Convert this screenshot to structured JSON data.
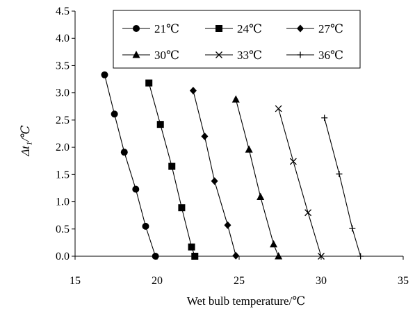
{
  "chart_data": {
    "type": "scatter",
    "xlabel": "Wet bulb temperature/℃",
    "ylabel": "Δt₁/℃",
    "xlim": [
      15,
      35
    ],
    "ylim": [
      0,
      4.5
    ],
    "x_ticks": [
      "15",
      "20",
      "25",
      "30",
      "35"
    ],
    "y_ticks": [
      "0.0",
      "0.5",
      "1.0",
      "1.5",
      "2.0",
      "2.5",
      "3.0",
      "3.5",
      "4.0",
      "4.5"
    ],
    "grid": false,
    "legend_position": "top-right",
    "lines_connect_markers": true,
    "series": [
      {
        "name": "21℃",
        "marker": "circle",
        "points": [
          [
            16.8,
            3.33
          ],
          [
            17.4,
            2.61
          ],
          [
            18.0,
            1.91
          ],
          [
            18.7,
            1.23
          ],
          [
            19.3,
            0.55
          ],
          [
            19.9,
            0.0
          ]
        ]
      },
      {
        "name": "24℃",
        "marker": "square",
        "points": [
          [
            19.5,
            3.18
          ],
          [
            20.2,
            2.42
          ],
          [
            20.9,
            1.65
          ],
          [
            21.5,
            0.89
          ],
          [
            22.1,
            0.17
          ],
          [
            22.3,
            0.0
          ]
        ]
      },
      {
        "name": "27℃",
        "marker": "diamond",
        "points": [
          [
            22.2,
            3.04
          ],
          [
            22.9,
            2.2
          ],
          [
            23.5,
            1.38
          ],
          [
            24.3,
            0.57
          ],
          [
            24.8,
            0.01
          ]
        ]
      },
      {
        "name": "30℃",
        "marker": "triangle",
        "points": [
          [
            24.8,
            2.88
          ],
          [
            25.6,
            1.96
          ],
          [
            26.3,
            1.09
          ],
          [
            27.1,
            0.22
          ],
          [
            27.4,
            0.0
          ]
        ]
      },
      {
        "name": "33℃",
        "marker": "x",
        "points": [
          [
            27.4,
            2.71
          ],
          [
            28.3,
            1.74
          ],
          [
            29.2,
            0.8
          ],
          [
            30.0,
            0.0
          ]
        ]
      },
      {
        "name": "36℃",
        "marker": "plus",
        "points": [
          [
            30.2,
            2.54
          ],
          [
            31.1,
            1.51
          ],
          [
            31.9,
            0.51
          ],
          [
            32.4,
            0.0
          ]
        ]
      }
    ]
  }
}
